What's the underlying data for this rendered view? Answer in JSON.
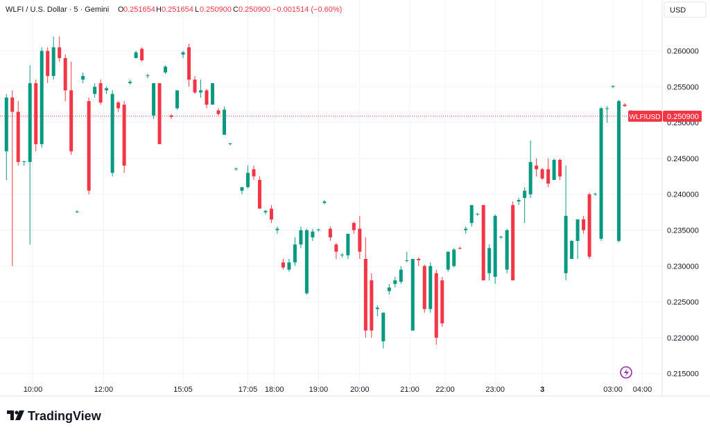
{
  "header": {
    "symbol": "WLFI / U.S. Dollar · 5 · Gemini",
    "o_label": "O",
    "open": "0.251654",
    "h_label": "H",
    "high": "0.251654",
    "l_label": "L",
    "low": "0.250900",
    "c_label": "C",
    "close": "0.250900",
    "change": "−0.001514 (−0.60%)",
    "currency": "USD"
  },
  "logo": "TradingView",
  "chart_data": {
    "type": "candlestick",
    "up_color": "#089981",
    "down_color": "#f23645",
    "open": [
      0.246,
      0.2535,
      0.2515,
      0.2445,
      0.2445,
      0.2555,
      0.247,
      0.26,
      0.2565,
      0.2605,
      0.259,
      0.2545,
      0.2375,
      0.256,
      0.253,
      0.254,
      0.2555,
      0.2545,
      0.243,
      0.2528,
      0.2525,
      0.2555,
      0.259,
      0.2603,
      0.2565,
      0.251,
      0.2555,
      0.257,
      0.251,
      0.252,
      0.2595,
      0.2605,
      0.256,
      0.2542,
      0.2545,
      0.2525,
      0.2517,
      0.2483,
      0.247,
      0.2435,
      0.2405,
      0.241,
      0.2435,
      0.242,
      0.2375,
      0.238,
      0.235,
      0.2305,
      0.2295,
      0.2305,
      0.233,
      0.2262,
      0.234,
      0.235,
      0.2388,
      0.2352,
      0.233,
      0.2315,
      0.2315,
      0.236,
      0.2352,
      0.231,
      0.228,
      0.224,
      0.2195,
      0.2265,
      0.2275,
      0.2278,
      0.2308,
      0.221,
      0.231,
      0.23,
      0.224,
      0.229,
      0.228,
      0.2295,
      0.23,
      0.2325,
      0.235,
      0.236,
      0.2372,
      0.2385,
      0.229,
      0.2285,
      0.234,
      0.2295,
      0.2385,
      0.239,
      0.2395,
      0.24,
      0.244,
      0.2435,
      0.2435,
      0.242,
      0.2448,
      0.229,
      0.231,
      0.2335,
      0.2365,
      0.24,
      0.24,
      0.2338,
      0.252,
      0.255,
      0.2335,
      0.2525,
      0.2517
    ],
    "high": [
      0.254,
      0.2545,
      0.253,
      0.2447,
      0.258,
      0.256,
      0.2605,
      0.2605,
      0.262,
      0.262,
      0.2595,
      0.2585,
      0.2378,
      0.257,
      0.2535,
      0.2555,
      0.256,
      0.255,
      0.2545,
      0.253,
      0.253,
      0.256,
      0.26,
      0.2605,
      0.2568,
      0.2555,
      0.2555,
      0.258,
      0.2512,
      0.2545,
      0.26,
      0.261,
      0.2565,
      0.256,
      0.2547,
      0.2555,
      0.252,
      0.2522,
      0.2472,
      0.2437,
      0.241,
      0.244,
      0.244,
      0.2425,
      0.2378,
      0.2385,
      0.2355,
      0.231,
      0.231,
      0.234,
      0.2355,
      0.2352,
      0.2352,
      0.2352,
      0.2392,
      0.2355,
      0.2332,
      0.2318,
      0.2345,
      0.2362,
      0.237,
      0.234,
      0.229,
      0.2245,
      0.2235,
      0.2275,
      0.2285,
      0.23,
      0.232,
      0.231,
      0.2312,
      0.2302,
      0.2305,
      0.2295,
      0.2285,
      0.232,
      0.2325,
      0.2327,
      0.2355,
      0.2385,
      0.2374,
      0.2385,
      0.233,
      0.2372,
      0.2342,
      0.2352,
      0.239,
      0.2395,
      0.241,
      0.2475,
      0.245,
      0.2437,
      0.245,
      0.245,
      0.245,
      0.244,
      0.2336,
      0.2365,
      0.237,
      0.2402,
      0.2402,
      0.2522,
      0.2523,
      0.2552,
      0.2532,
      0.2527,
      0.2517
    ],
    "low": [
      0.242,
      0.23,
      0.244,
      0.244,
      0.233,
      0.246,
      0.2465,
      0.2555,
      0.256,
      0.2585,
      0.253,
      0.2455,
      0.2374,
      0.2555,
      0.24,
      0.2535,
      0.2525,
      0.254,
      0.2425,
      0.2515,
      0.243,
      0.2553,
      0.259,
      0.2585,
      0.2562,
      0.2505,
      0.247,
      0.2568,
      0.2505,
      0.2518,
      0.259,
      0.255,
      0.254,
      0.2535,
      0.252,
      0.2525,
      0.251,
      0.2483,
      0.2468,
      0.2433,
      0.24,
      0.2408,
      0.242,
      0.238,
      0.2372,
      0.236,
      0.2345,
      0.2295,
      0.2292,
      0.23,
      0.2325,
      0.226,
      0.2335,
      0.2348,
      0.2386,
      0.2335,
      0.231,
      0.2312,
      0.231,
      0.2345,
      0.231,
      0.22,
      0.22,
      0.223,
      0.2185,
      0.226,
      0.227,
      0.2275,
      0.2305,
      0.221,
      0.23,
      0.2235,
      0.2235,
      0.219,
      0.2215,
      0.2292,
      0.2298,
      0.2323,
      0.2345,
      0.2355,
      0.237,
      0.228,
      0.228,
      0.2275,
      0.2338,
      0.229,
      0.228,
      0.2385,
      0.236,
      0.2395,
      0.2425,
      0.242,
      0.241,
      0.242,
      0.242,
      0.228,
      0.231,
      0.231,
      0.2345,
      0.231,
      0.2398,
      0.2335,
      0.25,
      0.2548,
      0.2333,
      0.2522,
      0.2509
    ],
    "close": [
      0.2535,
      0.2515,
      0.2445,
      0.2446,
      0.2555,
      0.247,
      0.26,
      0.2565,
      0.2605,
      0.259,
      0.2545,
      0.246,
      0.2376,
      0.2565,
      0.2405,
      0.255,
      0.2528,
      0.2548,
      0.254,
      0.252,
      0.244,
      0.2557,
      0.2598,
      0.2587,
      0.2566,
      0.2555,
      0.247,
      0.2578,
      0.2508,
      0.2545,
      0.2598,
      0.256,
      0.2542,
      0.2545,
      0.2525,
      0.2555,
      0.2512,
      0.2518,
      0.2471,
      0.2436,
      0.241,
      0.243,
      0.2425,
      0.238,
      0.2377,
      0.2365,
      0.2352,
      0.2298,
      0.2305,
      0.233,
      0.235,
      0.235,
      0.2348,
      0.2351,
      0.239,
      0.234,
      0.232,
      0.2316,
      0.2345,
      0.235,
      0.232,
      0.221,
      0.221,
      0.2242,
      0.2235,
      0.227,
      0.228,
      0.2295,
      0.2308,
      0.231,
      0.2308,
      0.224,
      0.23,
      0.22,
      0.222,
      0.232,
      0.2323,
      0.2324,
      0.2352,
      0.2385,
      0.2373,
      0.228,
      0.2325,
      0.237,
      0.2341,
      0.235,
      0.228,
      0.2392,
      0.2405,
      0.2445,
      0.2435,
      0.2422,
      0.2415,
      0.2448,
      0.2425,
      0.237,
      0.2335,
      0.2365,
      0.235,
      0.2313,
      0.2401,
      0.252,
      0.252,
      0.2551,
      0.253,
      0.2523,
      0.2509
    ],
    "xlim": [
      -0.5,
      111
    ],
    "ylim": [
      0.2142,
      0.2671
    ],
    "xticks": [
      {
        "value": 4.5,
        "label": "10:00"
      },
      {
        "value": 16.5,
        "label": "12:00"
      },
      {
        "value": 30,
        "label": "15:05"
      },
      {
        "value": 41,
        "label": "17:05"
      },
      {
        "value": 45.5,
        "label": "18:00"
      },
      {
        "value": 53,
        "label": "19:00"
      },
      {
        "value": 60,
        "label": "20:00"
      },
      {
        "value": 68.5,
        "label": "21:00"
      },
      {
        "value": 74.5,
        "label": "22:00"
      },
      {
        "value": 83,
        "label": "23:00"
      },
      {
        "value": 91,
        "label": "3"
      },
      {
        "value": 103,
        "label": "03:00"
      },
      {
        "value": 108,
        "label": "04:00"
      }
    ],
    "yticks": [
      {
        "value": 0.215,
        "label": "0.215000"
      },
      {
        "value": 0.22,
        "label": "0.220000"
      },
      {
        "value": 0.225,
        "label": "0.225000"
      },
      {
        "value": 0.23,
        "label": "0.230000"
      },
      {
        "value": 0.235,
        "label": "0.235000"
      },
      {
        "value": 0.24,
        "label": "0.240000"
      },
      {
        "value": 0.245,
        "label": "0.245000"
      },
      {
        "value": 0.25,
        "label": "0.250000"
      },
      {
        "value": 0.255,
        "label": "0.255000"
      },
      {
        "value": 0.26,
        "label": "0.260000"
      }
    ],
    "grid": true,
    "last_price": {
      "name": "WLFIUSD",
      "value": 0.2509,
      "label": "0.250900"
    }
  }
}
